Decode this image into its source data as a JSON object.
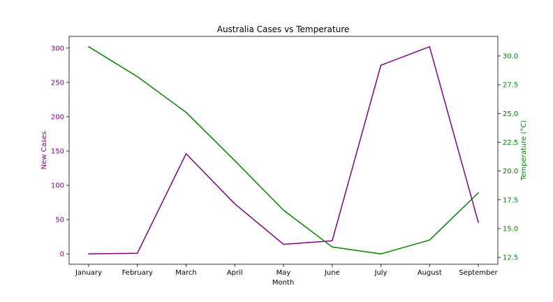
{
  "chart_data": {
    "type": "line",
    "title": "Australia Cases vs Temperature",
    "xlabel": "Month",
    "categories": [
      "January",
      "February",
      "March",
      "April",
      "May",
      "June",
      "July",
      "August",
      "September"
    ],
    "series": [
      {
        "axis": "left",
        "color": "#800080",
        "values": [
          0,
          1,
          146,
          73,
          14,
          19,
          275,
          302,
          46
        ]
      },
      {
        "axis": "right",
        "color": "#008000",
        "values": [
          30.8,
          28.2,
          25.1,
          20.9,
          16.6,
          13.4,
          12.8,
          14.0,
          18.1
        ]
      }
    ],
    "y_left": {
      "label": "New Cases",
      "color": "#800080",
      "ylim": [
        -15.1,
        317.1
      ],
      "ticks": [
        0,
        50,
        100,
        150,
        200,
        250,
        300
      ]
    },
    "y_right": {
      "label": "Temperature (°C)",
      "color": "#008000",
      "ylim": [
        11.9,
        31.7
      ],
      "ticks": [
        12.5,
        15.0,
        17.5,
        20.0,
        22.5,
        25.0,
        27.5,
        30.0
      ]
    },
    "grid": false,
    "legend": "none"
  }
}
